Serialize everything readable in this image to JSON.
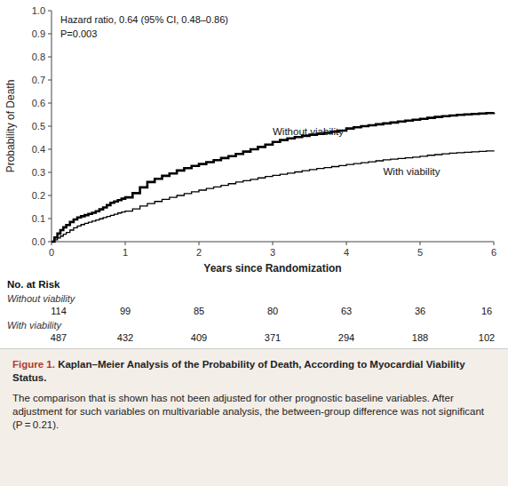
{
  "chart_data": {
    "type": "step",
    "xlabel": "Years since Randomization",
    "ylabel": "Probability of Death",
    "xlim": [
      0,
      6
    ],
    "ylim": [
      0.0,
      1.0
    ],
    "xticks": [
      0,
      1,
      2,
      3,
      4,
      5,
      6
    ],
    "yticks": [
      {
        "value": 0.0,
        "label": "0.0"
      },
      0.1,
      0.2,
      0.3,
      0.4,
      0.5,
      0.6,
      0.7,
      0.8,
      0.9,
      {
        "value": 1.0,
        "label": "1.0"
      }
    ],
    "grid": false,
    "annotations": [
      "Hazard ratio, 0.64 (95% CI, 0.48–0.86)",
      "P=0.003"
    ],
    "x": [
      0,
      0.04,
      0.08,
      0.12,
      0.16,
      0.2,
      0.25,
      0.3,
      0.35,
      0.4,
      0.45,
      0.5,
      0.55,
      0.6,
      0.65,
      0.7,
      0.75,
      0.8,
      0.85,
      0.9,
      0.95,
      1.0,
      1.1,
      1.2,
      1.3,
      1.4,
      1.5,
      1.6,
      1.7,
      1.8,
      1.9,
      2.0,
      2.1,
      2.2,
      2.3,
      2.4,
      2.5,
      2.6,
      2.7,
      2.8,
      2.9,
      3.0,
      3.1,
      3.2,
      3.3,
      3.4,
      3.5,
      3.6,
      3.7,
      3.8,
      3.9,
      4.0,
      4.1,
      4.2,
      4.3,
      4.4,
      4.5,
      4.6,
      4.7,
      4.8,
      4.9,
      5.0,
      5.1,
      5.2,
      5.3,
      5.4,
      5.5,
      5.6,
      5.7,
      5.8,
      5.9,
      6.0
    ],
    "series": [
      {
        "name": "Without viability",
        "color": "#000000",
        "values": [
          0.0,
          0.018,
          0.035,
          0.05,
          0.062,
          0.072,
          0.085,
          0.096,
          0.105,
          0.11,
          0.115,
          0.12,
          0.125,
          0.132,
          0.14,
          0.148,
          0.158,
          0.168,
          0.174,
          0.18,
          0.186,
          0.192,
          0.21,
          0.235,
          0.258,
          0.272,
          0.285,
          0.295,
          0.308,
          0.318,
          0.328,
          0.336,
          0.344,
          0.353,
          0.362,
          0.37,
          0.38,
          0.39,
          0.4,
          0.41,
          0.42,
          0.432,
          0.44,
          0.447,
          0.453,
          0.458,
          0.463,
          0.467,
          0.471,
          0.476,
          0.481,
          0.49,
          0.495,
          0.5,
          0.504,
          0.508,
          0.512,
          0.516,
          0.52,
          0.524,
          0.528,
          0.532,
          0.536,
          0.54,
          0.543,
          0.546,
          0.549,
          0.551,
          0.553,
          0.555,
          0.557,
          0.56
        ]
      },
      {
        "name": "With viability",
        "color": "#000000",
        "values": [
          0.0,
          0.008,
          0.016,
          0.024,
          0.032,
          0.04,
          0.05,
          0.06,
          0.068,
          0.074,
          0.079,
          0.084,
          0.089,
          0.094,
          0.099,
          0.104,
          0.109,
          0.114,
          0.119,
          0.124,
          0.128,
          0.132,
          0.142,
          0.154,
          0.165,
          0.174,
          0.183,
          0.192,
          0.2,
          0.208,
          0.216,
          0.223,
          0.23,
          0.237,
          0.244,
          0.251,
          0.258,
          0.264,
          0.27,
          0.276,
          0.282,
          0.287,
          0.292,
          0.297,
          0.302,
          0.307,
          0.312,
          0.317,
          0.321,
          0.325,
          0.329,
          0.334,
          0.338,
          0.342,
          0.346,
          0.35,
          0.354,
          0.357,
          0.36,
          0.363,
          0.366,
          0.37,
          0.374,
          0.377,
          0.38,
          0.383,
          0.385,
          0.387,
          0.389,
          0.391,
          0.393,
          0.395
        ]
      }
    ],
    "risk_table": {
      "title": "No. at Risk",
      "x": [
        0,
        1,
        2,
        3,
        4,
        5,
        6
      ],
      "rows": [
        {
          "label": "Without viability",
          "values": [
            114,
            99,
            85,
            80,
            63,
            36,
            16
          ]
        },
        {
          "label": "With viability",
          "values": [
            487,
            432,
            409,
            371,
            294,
            188,
            102
          ]
        }
      ]
    },
    "caption": {
      "label": "Figure 1.",
      "title": "Kaplan–Meier Analysis of the Probability of Death, According to Myocardial Viability Status.",
      "text": "The comparison that is shown has not been adjusted for other prognostic baseline variables. After adjustment for such variables on multivariable analysis, the between-group difference was not significant (P = 0.21)."
    }
  }
}
